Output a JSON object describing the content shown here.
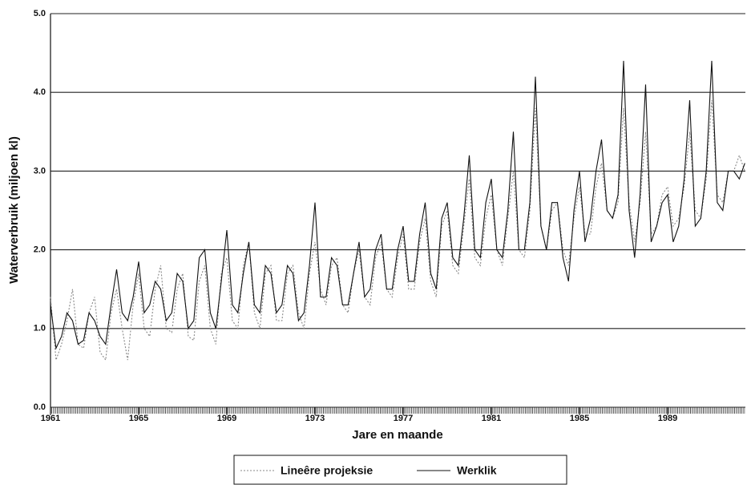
{
  "chart_data": {
    "type": "line",
    "y_label": "Waterverbruik (miljoen kl)",
    "x_label": "Jare en maande",
    "xlim": [
      1961,
      1992.6
    ],
    "xticks": [
      1961,
      1965,
      1969,
      1973,
      1977,
      1981,
      1985,
      1989
    ],
    "ylim": [
      0,
      5
    ],
    "yticks": [
      {
        "value": 0,
        "label": "0.0"
      },
      {
        "value": 1,
        "label": "1.0"
      },
      {
        "value": 2,
        "label": "2.0"
      },
      {
        "value": 3,
        "label": "3.0"
      },
      {
        "value": 4,
        "label": "4.0"
      },
      {
        "value": 5,
        "label": "5.0"
      }
    ],
    "grid": true,
    "x": [
      1961,
      1961.25,
      1961.5,
      1961.75,
      1962,
      1962.25,
      1962.5,
      1962.75,
      1963,
      1963.25,
      1963.5,
      1963.75,
      1964,
      1964.25,
      1964.5,
      1964.75,
      1965,
      1965.25,
      1965.5,
      1965.75,
      1966,
      1966.25,
      1966.5,
      1966.75,
      1967,
      1967.25,
      1967.5,
      1967.75,
      1968,
      1968.25,
      1968.5,
      1968.75,
      1969,
      1969.25,
      1969.5,
      1969.75,
      1970,
      1970.25,
      1970.5,
      1970.75,
      1971,
      1971.25,
      1971.5,
      1971.75,
      1972,
      1972.25,
      1972.5,
      1972.75,
      1973,
      1973.25,
      1973.5,
      1973.75,
      1974,
      1974.25,
      1974.5,
      1974.75,
      1975,
      1975.25,
      1975.5,
      1975.75,
      1976,
      1976.25,
      1976.5,
      1976.75,
      1977,
      1977.25,
      1977.5,
      1977.75,
      1978,
      1978.25,
      1978.5,
      1978.75,
      1979,
      1979.25,
      1979.5,
      1979.75,
      1980,
      1980.25,
      1980.5,
      1980.75,
      1981,
      1981.25,
      1981.5,
      1981.75,
      1982,
      1982.25,
      1982.5,
      1982.75,
      1983,
      1983.25,
      1983.5,
      1983.75,
      1984,
      1984.25,
      1984.5,
      1984.75,
      1985,
      1985.25,
      1985.5,
      1985.75,
      1986,
      1986.25,
      1986.5,
      1986.75,
      1987,
      1987.25,
      1987.5,
      1987.75,
      1988,
      1988.25,
      1988.5,
      1988.75,
      1989,
      1989.25,
      1989.5,
      1989.75,
      1990,
      1990.25,
      1990.5,
      1990.75,
      1991,
      1991.25,
      1991.5,
      1991.75,
      1992,
      1992.25,
      1992.5
    ],
    "series": [
      {
        "name": "Lineêre projeksie",
        "color": "#888888",
        "dash": "2,2",
        "values": [
          1.4,
          0.6,
          0.8,
          1.1,
          1.5,
          0.8,
          0.75,
          1.2,
          1.4,
          0.7,
          0.6,
          1.2,
          1.5,
          1.0,
          0.6,
          1.3,
          1.7,
          1.0,
          0.9,
          1.5,
          1.8,
          1.0,
          0.95,
          1.5,
          1.7,
          0.9,
          0.85,
          1.6,
          1.8,
          1.0,
          0.8,
          1.7,
          1.9,
          1.1,
          1.0,
          1.8,
          2.1,
          1.2,
          1.0,
          1.7,
          1.8,
          1.1,
          1.1,
          1.7,
          1.8,
          1.2,
          1.0,
          1.7,
          2.1,
          1.5,
          1.3,
          1.8,
          1.9,
          1.3,
          1.2,
          1.7,
          2.0,
          1.4,
          1.3,
          1.9,
          2.1,
          1.5,
          1.4,
          1.9,
          2.2,
          1.5,
          1.5,
          2.1,
          2.4,
          1.6,
          1.4,
          2.3,
          2.5,
          1.8,
          1.7,
          2.3,
          2.9,
          1.9,
          1.8,
          2.4,
          2.7,
          2.0,
          1.8,
          2.4,
          3.0,
          2.0,
          1.9,
          2.5,
          3.8,
          2.3,
          2.0,
          2.5,
          2.6,
          2.0,
          1.8,
          2.4,
          2.8,
          2.2,
          2.2,
          2.8,
          3.1,
          2.5,
          2.4,
          2.6,
          3.8,
          2.6,
          2.1,
          2.6,
          3.5,
          2.2,
          2.3,
          2.7,
          2.8,
          2.3,
          2.4,
          2.8,
          3.5,
          2.5,
          2.4,
          2.9,
          3.9,
          2.7,
          2.6,
          3.0,
          3.0,
          3.2,
          3.0
        ]
      },
      {
        "name": "Werklik",
        "color": "#111111",
        "dash": "",
        "values": [
          1.3,
          0.75,
          0.9,
          1.2,
          1.1,
          0.8,
          0.85,
          1.2,
          1.1,
          0.9,
          0.8,
          1.3,
          1.75,
          1.2,
          1.1,
          1.4,
          1.85,
          1.2,
          1.3,
          1.6,
          1.5,
          1.1,
          1.2,
          1.7,
          1.6,
          1.0,
          1.1,
          1.9,
          2.0,
          1.2,
          1.0,
          1.6,
          2.25,
          1.3,
          1.2,
          1.7,
          2.1,
          1.3,
          1.2,
          1.8,
          1.7,
          1.2,
          1.3,
          1.8,
          1.7,
          1.1,
          1.2,
          1.8,
          2.6,
          1.4,
          1.4,
          1.9,
          1.8,
          1.3,
          1.3,
          1.7,
          2.1,
          1.4,
          1.5,
          2.0,
          2.2,
          1.5,
          1.5,
          2.0,
          2.3,
          1.6,
          1.6,
          2.2,
          2.6,
          1.7,
          1.5,
          2.4,
          2.6,
          1.9,
          1.8,
          2.4,
          3.2,
          2.0,
          1.9,
          2.6,
          2.9,
          2.0,
          1.9,
          2.5,
          3.5,
          2.0,
          2.0,
          2.6,
          4.2,
          2.3,
          2.0,
          2.6,
          2.6,
          1.9,
          1.6,
          2.5,
          3.0,
          2.1,
          2.4,
          3.0,
          3.4,
          2.5,
          2.4,
          2.7,
          4.4,
          2.5,
          1.9,
          2.7,
          4.1,
          2.1,
          2.3,
          2.6,
          2.7,
          2.1,
          2.3,
          2.9,
          3.9,
          2.3,
          2.4,
          3.0,
          4.4,
          2.6,
          2.5,
          3.0,
          3.0,
          2.9,
          3.1
        ]
      }
    ]
  }
}
